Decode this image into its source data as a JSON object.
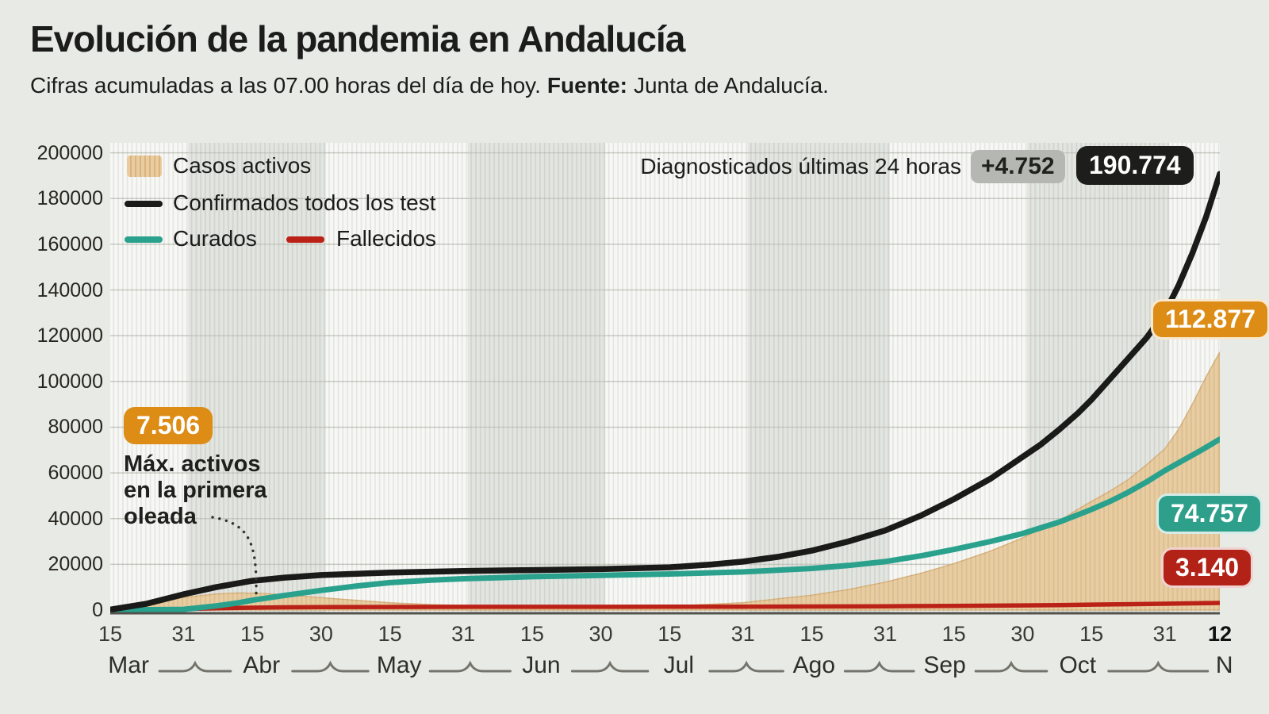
{
  "header": {
    "title": "Evolución de la pandemia en Andalucía",
    "subtitle": "Cifras acumuladas a las 07.00 horas del día de hoy.",
    "source_label": "Fuente:",
    "source_value": "Junta de Andalucía."
  },
  "legend": {
    "casos_activos": "Casos activos",
    "confirmados": "Confirmados todos los test",
    "curados": "Curados",
    "fallecidos": "Fallecidos"
  },
  "annotations": {
    "diagnosticados_label": "Diagnosticados últimas 24 horas",
    "delta_badge": "+4.752",
    "total_badge": "190.774",
    "activos_badge": "112.877",
    "curados_badge": "74.757",
    "fallecidos_badge": "3.140",
    "max_badge": "7.506",
    "max_note_lines": [
      "Máx. activos",
      "en la primera",
      "oleada"
    ]
  },
  "colors": {
    "background": "#e8eae5",
    "band_light": "#f7f8f5",
    "band_dark": "#e2e5e0",
    "grid": "#c9ccc4",
    "stripe": "rgba(50,45,35,0.09)",
    "area_activos": "#e9cda0",
    "area_hatch": "#d9b47e",
    "line_confirmados": "#1a1a18",
    "line_curados": "#2aa18d",
    "line_fallecidos": "#bb2217",
    "badge_orange": "#dd8c15",
    "badge_teal": "#2d9f8b",
    "badge_red": "#b32217",
    "badge_black": "#1d1d1b",
    "badge_gray": "#b5b8b2",
    "axis": "#52524d",
    "text": "#1c1c1a"
  },
  "chart_data": {
    "type": "area",
    "title": "Evolución de la pandemia en Andalucía",
    "x_unit": "days since 15 Mar 2020",
    "ylim": [
      0,
      200000
    ],
    "y_ticks": [
      0,
      20000,
      40000,
      60000,
      80000,
      100000,
      120000,
      140000,
      160000,
      180000,
      200000
    ],
    "x_ticks": [
      {
        "day": 0,
        "label": "15"
      },
      {
        "day": 16,
        "label": "31"
      },
      {
        "day": 31,
        "label": "15"
      },
      {
        "day": 46,
        "label": "30"
      },
      {
        "day": 61,
        "label": "15"
      },
      {
        "day": 77,
        "label": "31"
      },
      {
        "day": 92,
        "label": "15"
      },
      {
        "day": 107,
        "label": "30"
      },
      {
        "day": 122,
        "label": "15"
      },
      {
        "day": 138,
        "label": "31"
      },
      {
        "day": 153,
        "label": "15"
      },
      {
        "day": 169,
        "label": "31"
      },
      {
        "day": 184,
        "label": "15"
      },
      {
        "day": 199,
        "label": "30"
      },
      {
        "day": 214,
        "label": "15"
      },
      {
        "day": 230,
        "label": "31"
      },
      {
        "day": 242,
        "label": "12",
        "bold": true
      }
    ],
    "months": [
      {
        "label": "Mar",
        "center_day": 4
      },
      {
        "label": "Abr",
        "center_day": 33
      },
      {
        "label": "May",
        "center_day": 63
      },
      {
        "label": "Jun",
        "center_day": 94
      },
      {
        "label": "Jul",
        "center_day": 124
      },
      {
        "label": "Ago",
        "center_day": 153.5
      },
      {
        "label": "Sep",
        "center_day": 182
      },
      {
        "label": "Oct",
        "center_day": 211
      },
      {
        "label": "N",
        "center_day": 243
      }
    ],
    "month_boundaries_days": [
      0,
      17,
      47,
      78,
      108,
      139,
      170,
      200,
      231,
      243
    ],
    "series": [
      {
        "name": "Casos activos",
        "type": "area",
        "color": "#e9cda0",
        "points": [
          [
            0,
            100
          ],
          [
            8,
            2400
          ],
          [
            16,
            5500
          ],
          [
            23,
            7000
          ],
          [
            28,
            7506
          ],
          [
            34,
            7200
          ],
          [
            40,
            6400
          ],
          [
            46,
            5400
          ],
          [
            54,
            4200
          ],
          [
            61,
            3200
          ],
          [
            70,
            2400
          ],
          [
            77,
            2000
          ],
          [
            92,
            1500
          ],
          [
            107,
            1350
          ],
          [
            118,
            1600
          ],
          [
            127,
            2200
          ],
          [
            138,
            3200
          ],
          [
            146,
            5000
          ],
          [
            153,
            6500
          ],
          [
            161,
            9000
          ],
          [
            169,
            12200
          ],
          [
            177,
            16200
          ],
          [
            184,
            20300
          ],
          [
            192,
            25800
          ],
          [
            199,
            31600
          ],
          [
            203,
            35500
          ],
          [
            207,
            39000
          ],
          [
            211,
            44000
          ],
          [
            214,
            47500
          ],
          [
            218,
            52000
          ],
          [
            222,
            57000
          ],
          [
            226,
            63500
          ],
          [
            230,
            70500
          ],
          [
            233,
            79000
          ],
          [
            236,
            90000
          ],
          [
            239,
            102000
          ],
          [
            242,
            112877
          ]
        ]
      },
      {
        "name": "Confirmados todos los test",
        "type": "line",
        "color": "#1a1a18",
        "points": [
          [
            0,
            200
          ],
          [
            8,
            2800
          ],
          [
            16,
            6900
          ],
          [
            23,
            10000
          ],
          [
            31,
            12800
          ],
          [
            38,
            14200
          ],
          [
            46,
            15300
          ],
          [
            61,
            16400
          ],
          [
            77,
            17100
          ],
          [
            92,
            17500
          ],
          [
            107,
            17900
          ],
          [
            122,
            18700
          ],
          [
            131,
            19900
          ],
          [
            138,
            21200
          ],
          [
            146,
            23400
          ],
          [
            153,
            26000
          ],
          [
            161,
            30000
          ],
          [
            169,
            34800
          ],
          [
            177,
            41500
          ],
          [
            184,
            48500
          ],
          [
            192,
            57500
          ],
          [
            199,
            67000
          ],
          [
            203,
            72500
          ],
          [
            207,
            79000
          ],
          [
            211,
            86000
          ],
          [
            214,
            92000
          ],
          [
            218,
            101000
          ],
          [
            222,
            110000
          ],
          [
            226,
            119000
          ],
          [
            230,
            130000
          ],
          [
            233,
            142000
          ],
          [
            236,
            156000
          ],
          [
            239,
            172000
          ],
          [
            242,
            190774
          ]
        ]
      },
      {
        "name": "Curados",
        "type": "line",
        "color": "#2aa18d",
        "points": [
          [
            0,
            0
          ],
          [
            16,
            300
          ],
          [
            23,
            1800
          ],
          [
            28,
            3200
          ],
          [
            31,
            4300
          ],
          [
            38,
            6400
          ],
          [
            46,
            8600
          ],
          [
            54,
            10600
          ],
          [
            61,
            12000
          ],
          [
            70,
            13100
          ],
          [
            77,
            13700
          ],
          [
            92,
            14600
          ],
          [
            107,
            15200
          ],
          [
            122,
            15800
          ],
          [
            138,
            16700
          ],
          [
            153,
            18200
          ],
          [
            161,
            19500
          ],
          [
            169,
            21200
          ],
          [
            177,
            23800
          ],
          [
            184,
            26500
          ],
          [
            192,
            30000
          ],
          [
            199,
            33500
          ],
          [
            207,
            38500
          ],
          [
            214,
            44000
          ],
          [
            218,
            47500
          ],
          [
            222,
            51500
          ],
          [
            226,
            56000
          ],
          [
            230,
            61000
          ],
          [
            234,
            65500
          ],
          [
            238,
            70000
          ],
          [
            242,
            74757
          ]
        ]
      },
      {
        "name": "Fallecidos",
        "type": "line",
        "color": "#bb2217",
        "points": [
          [
            0,
            0
          ],
          [
            8,
            150
          ],
          [
            16,
            450
          ],
          [
            23,
            800
          ],
          [
            31,
            1050
          ],
          [
            38,
            1200
          ],
          [
            46,
            1300
          ],
          [
            61,
            1370
          ],
          [
            77,
            1410
          ],
          [
            107,
            1435
          ],
          [
            122,
            1455
          ],
          [
            138,
            1500
          ],
          [
            153,
            1560
          ],
          [
            169,
            1680
          ],
          [
            184,
            1850
          ],
          [
            199,
            2050
          ],
          [
            207,
            2200
          ],
          [
            214,
            2380
          ],
          [
            222,
            2580
          ],
          [
            230,
            2780
          ],
          [
            236,
            2950
          ],
          [
            242,
            3140
          ]
        ]
      }
    ],
    "last_values": {
      "confirmados": 190774,
      "curados": 74757,
      "fallecidos": 3140,
      "casos_activos": 112877,
      "diagnosticados_24h": 4752,
      "max_activos_primera_oleada": 7506
    }
  }
}
